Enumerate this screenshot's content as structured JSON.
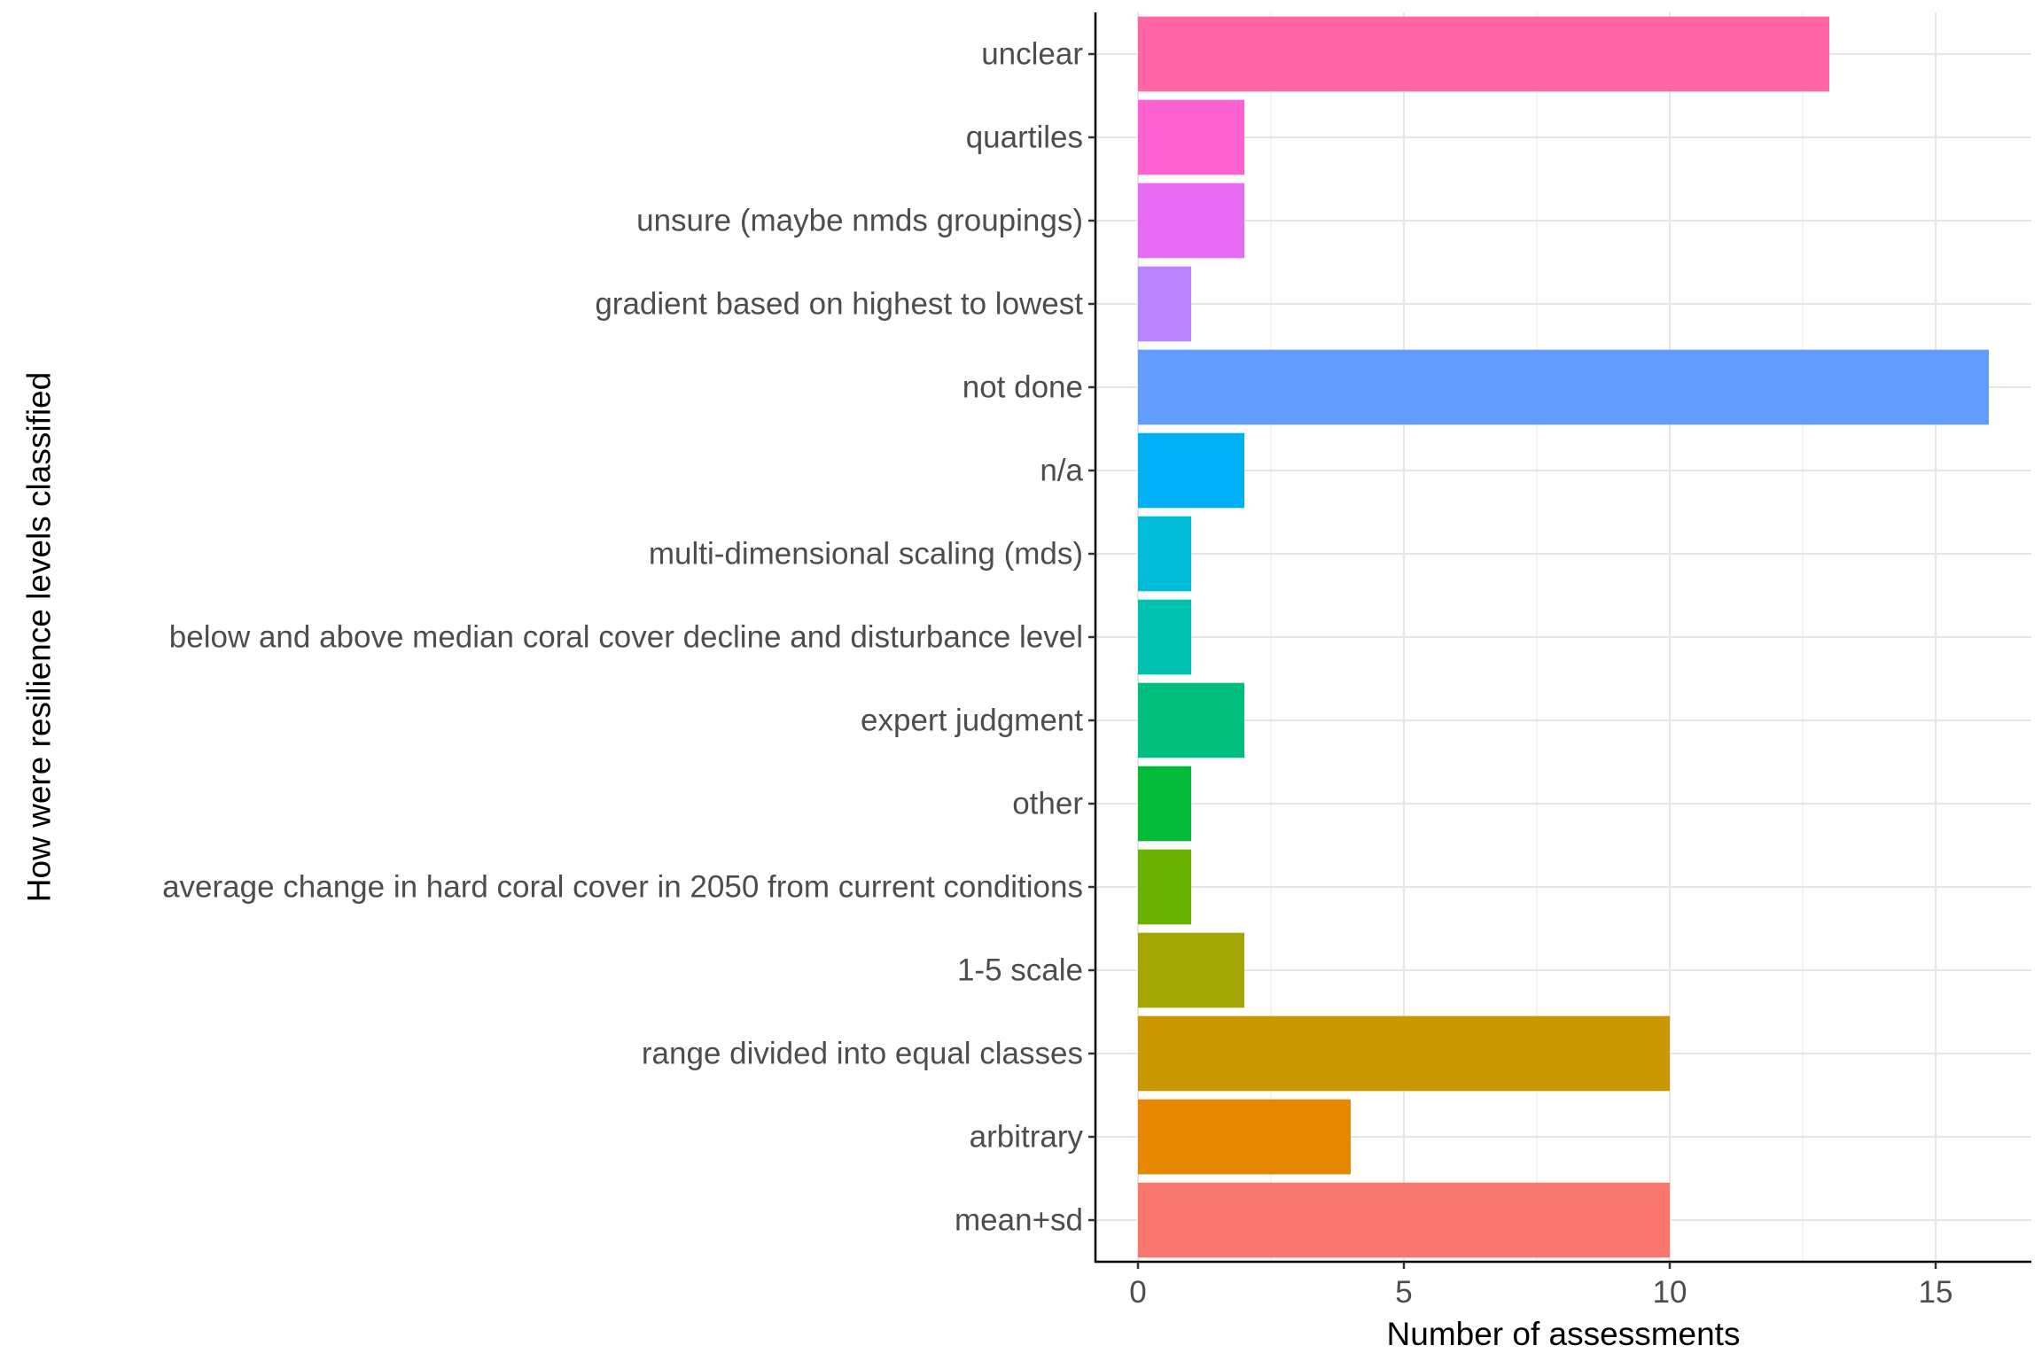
{
  "chart_data": {
    "type": "bar",
    "orientation": "horizontal",
    "xlabel": "Number of assessments",
    "ylabel": "How were resilience levels classified",
    "xlim": [
      -0.8,
      16.8
    ],
    "x_ticks": [
      0,
      5,
      10,
      15
    ],
    "grid": "major and minor, light grey",
    "legend": "none",
    "categories": [
      "mean+sd",
      "arbitrary",
      "range divided into equal classes",
      "1-5 scale",
      "average change in hard coral cover in 2050 from current conditions",
      "other",
      "expert judgment",
      "below and above median coral cover decline and disturbance level",
      "multi-dimensional  scaling  (mds)",
      "n/a",
      "not done",
      "gradient based on highest to lowest",
      "unsure (maybe nmds groupings)",
      "quartiles",
      "unclear"
    ],
    "values": [
      10,
      4,
      10,
      2,
      1,
      1,
      2,
      1,
      1,
      2,
      16,
      1,
      2,
      2,
      13
    ],
    "colors": [
      "#F8766D",
      "#E58700",
      "#C99800",
      "#A3A500",
      "#6BB100",
      "#00BA38",
      "#00BF7D",
      "#00C0AF",
      "#00BCD8",
      "#00B0F6",
      "#619CFF",
      "#B983FF",
      "#E76BF3",
      "#FD61D1",
      "#FF67A4"
    ]
  }
}
